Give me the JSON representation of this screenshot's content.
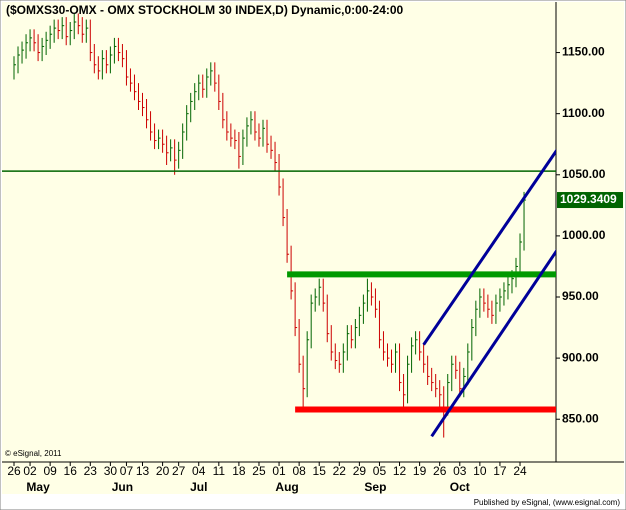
{
  "chart_data": {
    "type": "ohlc",
    "title": "($OMXS30-OMX - OMX STOCKHOLM 30 INDEX,D) Dynamic,0:00-24:00",
    "copyright": "© eSignal, 2011",
    "footer": "Published by eSignal, (www.esignal.com)",
    "up_color": "#006400",
    "down_color": "#cc0000",
    "high": [
      1147,
      1155,
      1159,
      1165,
      1169,
      1169,
      1165,
      1162,
      1167,
      1172,
      1177,
      1177,
      1179,
      1179,
      1175,
      1182,
      1182,
      1179,
      1177,
      1177,
      1157,
      1147,
      1152,
      1152,
      1155,
      1162,
      1162,
      1157,
      1152,
      1137,
      1132,
      1125,
      1117,
      1112,
      1102,
      1092,
      1087,
      1087,
      1082,
      1079,
      1079,
      1077,
      1092,
      1107,
      1117,
      1125,
      1132,
      1132,
      1137,
      1142,
      1142,
      1132,
      1117,
      1102,
      1092,
      1087,
      1085,
      1087,
      1097,
      1102,
      1102,
      1092,
      1095,
      1095,
      1082,
      1077,
      1067,
      1047,
      1022,
      992,
      962,
      932,
      902,
      922,
      952,
      957,
      965,
      965,
      952,
      927,
      912,
      905,
      912,
      927,
      927,
      932,
      942,
      952,
      965,
      962,
      957,
      947,
      922,
      912,
      907,
      912,
      912,
      887,
      902,
      917,
      922,
      922,
      912,
      902,
      892,
      887,
      882,
      877,
      887,
      902,
      902,
      897,
      892,
      912,
      932,
      947,
      957,
      957,
      952,
      947,
      952,
      957,
      962,
      967,
      972,
      982,
      1002,
      1036
    ],
    "low": [
      1128,
      1133,
      1141,
      1145,
      1151,
      1151,
      1143,
      1143,
      1148,
      1153,
      1158,
      1161,
      1161,
      1156,
      1156,
      1161,
      1165,
      1158,
      1158,
      1143,
      1133,
      1128,
      1128,
      1133,
      1133,
      1141,
      1143,
      1138,
      1123,
      1118,
      1111,
      1103,
      1098,
      1088,
      1078,
      1071,
      1071,
      1068,
      1058,
      1061,
      1050,
      1055,
      1063,
      1078,
      1093,
      1103,
      1111,
      1113,
      1113,
      1123,
      1118,
      1103,
      1088,
      1078,
      1073,
      1071,
      1055,
      1058,
      1073,
      1083,
      1078,
      1073,
      1073,
      1068,
      1063,
      1053,
      1033,
      1008,
      978,
      948,
      918,
      888,
      858,
      868,
      908,
      938,
      943,
      938,
      913,
      898,
      891,
      888,
      888,
      898,
      908,
      908,
      918,
      928,
      938,
      943,
      933,
      908,
      898,
      893,
      888,
      888,
      873,
      858,
      863,
      888,
      903,
      898,
      888,
      878,
      873,
      868,
      858,
      835,
      853,
      873,
      883,
      868,
      868,
      878,
      898,
      918,
      933,
      938,
      933,
      928,
      928,
      938,
      943,
      948,
      953,
      958,
      968,
      988
    ],
    "close": [
      1140,
      1148,
      1152,
      1158,
      1162,
      1158,
      1150,
      1155,
      1160,
      1165,
      1170,
      1168,
      1172,
      1163,
      1168,
      1175,
      1172,
      1165,
      1170,
      1150,
      1140,
      1135,
      1145,
      1140,
      1148,
      1155,
      1150,
      1145,
      1130,
      1125,
      1118,
      1110,
      1105,
      1095,
      1085,
      1078,
      1080,
      1075,
      1068,
      1072,
      1062,
      1070,
      1085,
      1100,
      1110,
      1118,
      1125,
      1120,
      1130,
      1135,
      1125,
      1110,
      1095,
      1085,
      1080,
      1078,
      1065,
      1080,
      1090,
      1095,
      1085,
      1080,
      1088,
      1075,
      1070,
      1060,
      1040,
      1015,
      985,
      955,
      925,
      895,
      875,
      915,
      945,
      950,
      958,
      945,
      920,
      905,
      898,
      895,
      905,
      920,
      915,
      925,
      935,
      945,
      955,
      950,
      940,
      915,
      905,
      900,
      895,
      905,
      880,
      870,
      895,
      910,
      915,
      905,
      895,
      885,
      880,
      875,
      870,
      860,
      880,
      895,
      890,
      875,
      885,
      905,
      925,
      940,
      950,
      945,
      940,
      935,
      945,
      950,
      955,
      960,
      965,
      975,
      995,
      1029.3409
    ],
    "xticks": [
      {
        "value": 0,
        "label": "26"
      },
      {
        "value": 4,
        "label": "02"
      },
      {
        "value": 9,
        "label": "09"
      },
      {
        "value": 14,
        "label": "16"
      },
      {
        "value": 19,
        "label": "23"
      },
      {
        "value": 24,
        "label": "30"
      },
      {
        "value": 28,
        "label": "07"
      },
      {
        "value": 32,
        "label": "13"
      },
      {
        "value": 37,
        "label": "20"
      },
      {
        "value": 41,
        "label": "27"
      },
      {
        "value": 46,
        "label": "04"
      },
      {
        "value": 51,
        "label": "11"
      },
      {
        "value": 56,
        "label": "18"
      },
      {
        "value": 61,
        "label": "25"
      },
      {
        "value": 66,
        "label": "01"
      },
      {
        "value": 71,
        "label": "08"
      },
      {
        "value": 76,
        "label": "15"
      },
      {
        "value": 81,
        "label": "22"
      },
      {
        "value": 86,
        "label": "29"
      },
      {
        "value": 91,
        "label": "05"
      },
      {
        "value": 96,
        "label": "12"
      },
      {
        "value": 101,
        "label": "19"
      },
      {
        "value": 106,
        "label": "26"
      },
      {
        "value": 111,
        "label": "03"
      },
      {
        "value": 116,
        "label": "10"
      },
      {
        "value": 121,
        "label": "17"
      },
      {
        "value": 126,
        "label": "24"
      }
    ],
    "months": [
      {
        "value": 6,
        "label": "May"
      },
      {
        "value": 27,
        "label": "Jun"
      },
      {
        "value": 46,
        "label": "Jul"
      },
      {
        "value": 68,
        "label": "Aug"
      },
      {
        "value": 90,
        "label": "Sep"
      },
      {
        "value": 111,
        "label": "Oct"
      }
    ],
    "ylim": [
      815,
      1193
    ],
    "yticks": [
      {
        "value": 850,
        "label": "850.00"
      },
      {
        "value": 900,
        "label": "900.00"
      },
      {
        "value": 950,
        "label": "950.00"
      },
      {
        "value": 1000,
        "label": "1000.00"
      },
      {
        "value": 1050,
        "label": "1050.00"
      },
      {
        "value": 1100,
        "label": "1100.00"
      },
      {
        "value": 1150,
        "label": "1150.00"
      }
    ],
    "lines": [
      {
        "from": [
          -4,
          1053
        ],
        "to": [
          136,
          1053
        ],
        "color": "#006400",
        "width": 1.5
      },
      {
        "from": [
          68,
          968.5
        ],
        "to": [
          136,
          968.5
        ],
        "color": "#009900",
        "width": 6
      },
      {
        "from": [
          70,
          858
        ],
        "to": [
          136,
          858
        ],
        "color": "#ff0000",
        "width": 6
      },
      {
        "from": [
          102,
          911
        ],
        "to": [
          137,
          1079
        ],
        "color": "#000099",
        "width": 3
      },
      {
        "from": [
          104,
          836
        ],
        "to": [
          137,
          997
        ],
        "color": "#000099",
        "width": 3
      }
    ]
  }
}
